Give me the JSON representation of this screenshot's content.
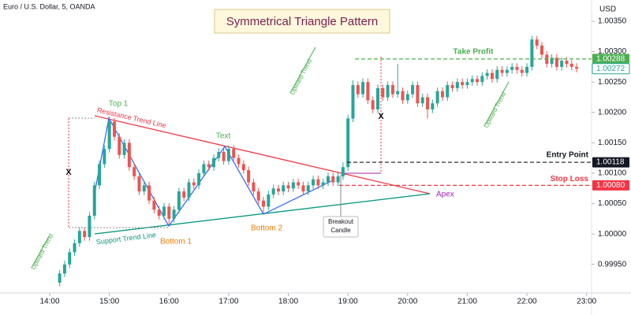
{
  "chart_data": {
    "type": "candlestick",
    "header": "Euro / U.S. Dollar, 5, OANDA",
    "title": "Symmetrical Triangle Pattern",
    "currency": "USD",
    "up_color": "#26a69a",
    "down_color": "#ef5350",
    "xlim": [
      "13:10",
      "23:05"
    ],
    "xticks": [
      "14:00",
      "15:00",
      "16:00",
      "17:00",
      "18:00",
      "19:00",
      "20:00",
      "21:00",
      "22:00",
      "23:00"
    ],
    "ylim": [
      0.99903,
      1.00385
    ],
    "yticks": [
      {
        "value": 0.9995,
        "label": "0.99950"
      },
      {
        "value": 1.0,
        "label": "1.00000"
      },
      {
        "value": 1.0005,
        "label": "1.00050"
      },
      {
        "value": 1.001,
        "label": "1.00100"
      },
      {
        "value": 1.0015,
        "label": "1.00150"
      },
      {
        "value": 1.002,
        "label": "1.00200"
      },
      {
        "value": 1.0025,
        "label": "1.00250"
      },
      {
        "value": 1.003,
        "label": "1.00300"
      },
      {
        "value": 1.0035,
        "label": "1.00350"
      }
    ],
    "x": [
      "14:10",
      "14:15",
      "14:20",
      "14:25",
      "14:30",
      "14:35",
      "14:40",
      "14:45",
      "14:50",
      "14:55",
      "15:00",
      "15:05",
      "15:10",
      "15:15",
      "15:20",
      "15:25",
      "15:30",
      "15:35",
      "15:40",
      "15:45",
      "15:50",
      "15:55",
      "16:00",
      "16:05",
      "16:10",
      "16:15",
      "16:20",
      "16:25",
      "16:30",
      "16:35",
      "16:40",
      "16:45",
      "16:50",
      "16:55",
      "17:00",
      "17:05",
      "17:10",
      "17:15",
      "17:20",
      "17:25",
      "17:30",
      "17:35",
      "17:40",
      "17:45",
      "17:50",
      "17:55",
      "18:00",
      "18:05",
      "18:10",
      "18:15",
      "18:20",
      "18:25",
      "18:30",
      "18:35",
      "18:40",
      "18:45",
      "18:50",
      "18:55",
      "19:00",
      "19:05",
      "19:10",
      "19:15",
      "19:20",
      "19:25",
      "19:30",
      "19:35",
      "19:40",
      "19:45",
      "19:50",
      "19:55",
      "20:00",
      "20:05",
      "20:10",
      "20:15",
      "20:20",
      "20:25",
      "20:30",
      "20:35",
      "20:40",
      "20:45",
      "20:50",
      "20:55",
      "21:00",
      "21:05",
      "21:10",
      "21:15",
      "21:20",
      "21:25",
      "21:30",
      "21:35",
      "21:40",
      "21:45",
      "21:50",
      "21:55",
      "22:00",
      "22:05",
      "22:10",
      "22:15",
      "22:20",
      "22:25",
      "22:30",
      "22:35",
      "22:40",
      "22:45",
      "22:50"
    ],
    "open": [
      0.9992,
      0.99935,
      0.9995,
      0.9997,
      0.99985,
      1.00005,
      0.99995,
      1.0003,
      1.0008,
      1.00115,
      1.0014,
      1.00185,
      1.0016,
      1.0013,
      1.0015,
      1.0011,
      1.00095,
      1.0007,
      1.0008,
      1.00055,
      1.0004,
      1.0003,
      1.00045,
      1.00025,
      1.0004,
      1.0007,
      1.0006,
      1.00085,
      1.0008,
      1.001,
      1.00115,
      1.0011,
      1.00125,
      1.00135,
      1.0012,
      1.0014,
      1.00125,
      1.00115,
      1.00105,
      1.00085,
      1.0007,
      1.00055,
      1.00045,
      1.00065,
      1.00075,
      1.0007,
      1.0008,
      1.00075,
      1.00085,
      1.0008,
      1.0007,
      1.0008,
      1.0009,
      1.0008,
      1.00085,
      1.00095,
      1.00085,
      1.00095,
      1.0011,
      1.0019,
      1.00245,
      1.0023,
      1.0025,
      1.0022,
      1.00205,
      1.0024,
      1.00225,
      1.00245,
      1.0023,
      1.00235,
      1.0022,
      1.0023,
      1.00245,
      1.00215,
      1.00225,
      1.00205,
      1.00215,
      1.00235,
      1.00225,
      1.00245,
      1.0024,
      1.0025,
      1.00245,
      1.0025,
      1.00255,
      1.0025,
      1.0026,
      1.00265,
      1.00255,
      1.0027,
      1.00265,
      1.0027,
      1.00275,
      1.0027,
      1.00265,
      1.00275,
      1.0032,
      1.0031,
      1.00295,
      1.0028,
      1.0029,
      1.00275,
      1.00285,
      1.0028,
      1.00275
    ],
    "high": [
      0.99941,
      0.99956,
      0.99976,
      0.99991,
      1.00011,
      1.00011,
      1.00036,
      1.00086,
      1.00121,
      1.00146,
      1.00193,
      1.00191,
      1.00166,
      1.00156,
      1.00156,
      1.00116,
      1.00101,
      1.00086,
      1.00086,
      1.00061,
      1.00046,
      1.00051,
      1.00051,
      1.00046,
      1.00076,
      1.00076,
      1.00091,
      1.00091,
      1.00106,
      1.00121,
      1.00121,
      1.00131,
      1.00141,
      1.00141,
      1.00146,
      1.00146,
      1.00131,
      1.00121,
      1.00111,
      1.00091,
      1.00076,
      1.00061,
      1.00071,
      1.00081,
      1.00081,
      1.00086,
      1.00086,
      1.00091,
      1.00091,
      1.00086,
      1.00086,
      1.00096,
      1.00096,
      1.00091,
      1.00101,
      1.00101,
      1.00101,
      1.00118,
      1.00196,
      1.00253,
      1.00251,
      1.00256,
      1.00256,
      1.00226,
      1.00246,
      1.00246,
      1.00251,
      1.00251,
      1.0028,
      1.00241,
      1.00236,
      1.00251,
      1.00251,
      1.00231,
      1.00231,
      1.00221,
      1.00241,
      1.00241,
      1.00251,
      1.00251,
      1.00256,
      1.00256,
      1.00256,
      1.00261,
      1.00261,
      1.00266,
      1.00271,
      1.00271,
      1.00276,
      1.00276,
      1.00276,
      1.00281,
      1.00281,
      1.00276,
      1.00281,
      1.00326,
      1.00326,
      1.00316,
      1.00301,
      1.00296,
      1.00296,
      1.00291,
      1.00291,
      1.00286,
      1.00281
    ],
    "low": [
      0.99914,
      0.99929,
      0.99944,
      0.99964,
      0.99979,
      0.99989,
      0.99989,
      1.00024,
      1.00074,
      1.00109,
      1.00134,
      1.00154,
      1.00124,
      1.00124,
      1.00104,
      1.00089,
      1.00064,
      1.00064,
      1.00049,
      1.00034,
      1.00024,
      1.00024,
      1.00016,
      1.00019,
      1.00034,
      1.00054,
      1.00054,
      1.00074,
      1.00074,
      1.00094,
      1.00104,
      1.00104,
      1.00119,
      1.00114,
      1.00114,
      1.00119,
      1.00109,
      1.00099,
      1.00079,
      1.00064,
      1.00049,
      1.00035,
      1.00039,
      1.00059,
      1.00064,
      1.00064,
      1.00069,
      1.00069,
      1.00074,
      1.00064,
      1.00064,
      1.00074,
      1.00074,
      1.00074,
      1.00079,
      1.00079,
      1.00079,
      1.00089,
      1.00104,
      1.00184,
      1.00224,
      1.00224,
      1.00214,
      1.00199,
      1.00199,
      1.00219,
      1.00219,
      1.00224,
      1.00224,
      1.00214,
      1.00214,
      1.00224,
      1.00209,
      1.00209,
      1.0019,
      1.00199,
      1.00209,
      1.00219,
      1.00219,
      1.00234,
      1.00234,
      1.00239,
      1.00239,
      1.00244,
      1.00244,
      1.00244,
      1.00254,
      1.00249,
      1.00249,
      1.00259,
      1.00259,
      1.00264,
      1.00264,
      1.00259,
      1.00259,
      1.00269,
      1.00304,
      1.00289,
      1.00274,
      1.00274,
      1.00269,
      1.00269,
      1.00274,
      1.00269,
      1.00266
    ],
    "close": [
      0.99935,
      0.9995,
      0.9997,
      0.99985,
      1.00005,
      0.99995,
      1.0003,
      1.0008,
      1.00115,
      1.0014,
      1.00185,
      1.0016,
      1.0013,
      1.0015,
      1.0011,
      1.00095,
      1.0007,
      1.0008,
      1.00055,
      1.0004,
      1.0003,
      1.00045,
      1.00025,
      1.0004,
      1.0007,
      1.0006,
      1.00085,
      1.0008,
      1.001,
      1.00115,
      1.0011,
      1.00125,
      1.00135,
      1.0012,
      1.0014,
      1.00125,
      1.00115,
      1.00105,
      1.00085,
      1.0007,
      1.00055,
      1.00045,
      1.00065,
      1.00075,
      1.0007,
      1.0008,
      1.00075,
      1.00085,
      1.0008,
      1.0007,
      1.0008,
      1.0009,
      1.0008,
      1.00085,
      1.00095,
      1.00085,
      1.00095,
      1.0011,
      1.0019,
      1.00245,
      1.0023,
      1.0025,
      1.0022,
      1.00205,
      1.0024,
      1.00225,
      1.00245,
      1.0023,
      1.00235,
      1.0022,
      1.0023,
      1.00245,
      1.00215,
      1.00225,
      1.00205,
      1.00215,
      1.00235,
      1.00225,
      1.00245,
      1.0024,
      1.0025,
      1.00245,
      1.0025,
      1.00255,
      1.0025,
      1.0026,
      1.00265,
      1.00255,
      1.0027,
      1.00265,
      1.0027,
      1.00275,
      1.0027,
      1.00265,
      1.00275,
      1.0032,
      1.0031,
      1.00295,
      1.0028,
      1.0029,
      1.00275,
      1.00285,
      1.0028,
      1.00275,
      1.00272
    ],
    "levels": [
      {
        "label": "Take Profit",
        "value": 1.00288,
        "value_label": "1.00288",
        "color": "#4caf50"
      },
      {
        "label": "Entry Point",
        "value": 1.00118,
        "value_label": "1.00118",
        "color": "#131722"
      },
      {
        "label": "Stop Loss",
        "value": 1.0008,
        "value_label": "1.00080",
        "color": "#f23645"
      }
    ],
    "last_price": {
      "value": 1.00272,
      "value_label": "1.00272",
      "color": "#26a69a"
    },
    "annotations": {
      "top_1": "Top 1",
      "text": "Text",
      "bottom_1": "Bottom 1",
      "bottom_2": "Bottom 2",
      "resistance": "Resistance Trend Line",
      "support": "Support Trend Line",
      "apex": "Apex",
      "breakout": [
        "Breakout",
        "Candle"
      ],
      "upward_trend": [
        "Upward Trend",
        "Upward Trend",
        "Upward Trend"
      ],
      "x_marks": [
        "X",
        "X"
      ]
    }
  }
}
